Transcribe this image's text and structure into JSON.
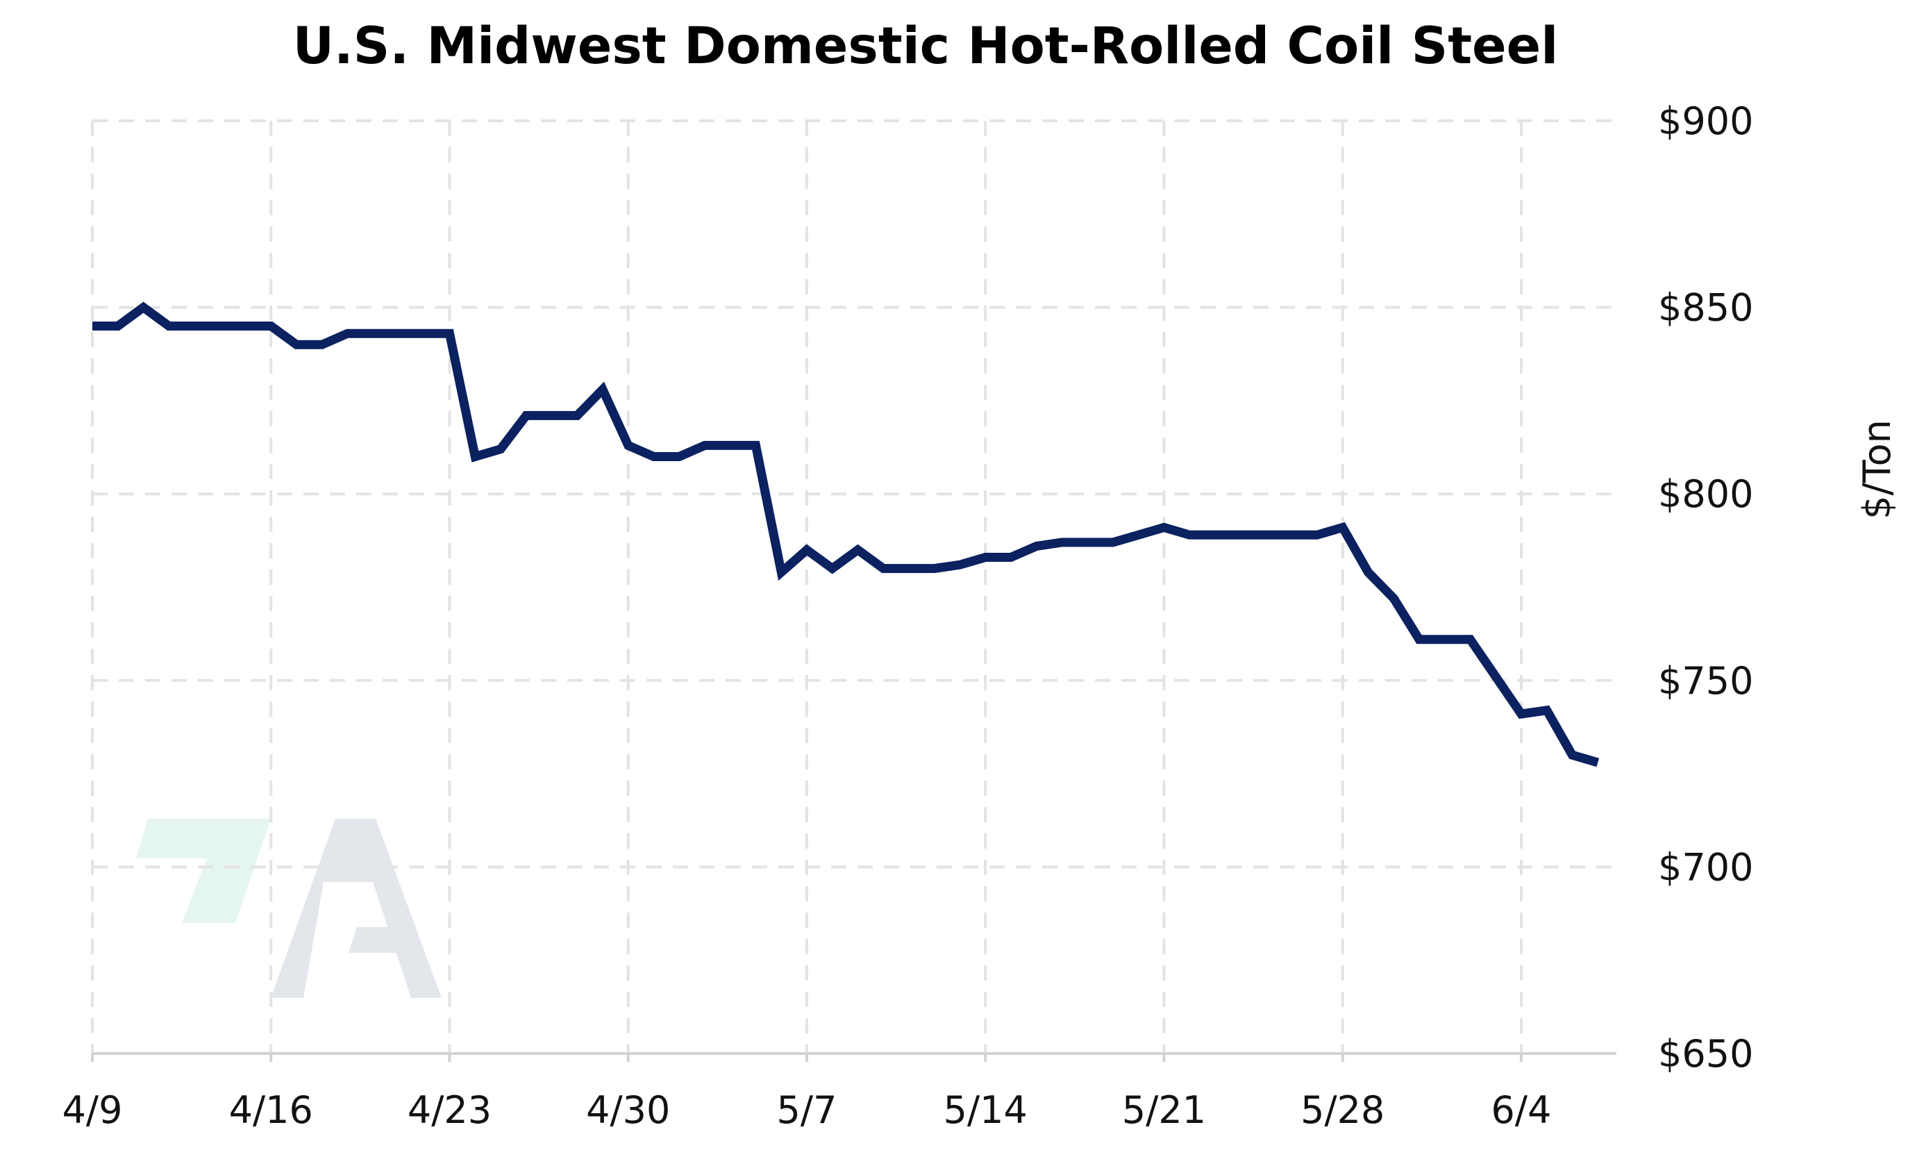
{
  "chart_data": {
    "type": "line",
    "title": "U.S. Midwest Domestic Hot-Rolled Coil Steel",
    "xlabel": "",
    "ylabel": "$/Ton",
    "x_tick_labels": [
      "4/9",
      "4/16",
      "4/23",
      "4/30",
      "5/7",
      "5/14",
      "5/21",
      "5/28",
      "6/4"
    ],
    "y_tick_labels": [
      "$650",
      "$700",
      "$750",
      "$800",
      "$850",
      "$900"
    ],
    "y_ticks": [
      650,
      700,
      750,
      800,
      850,
      900
    ],
    "ylim": [
      650,
      900
    ],
    "xlim": [
      "4/9",
      "6/8"
    ],
    "grid": true,
    "y_axis_position": "right",
    "series": [
      {
        "color": "#0b2160",
        "x": [
          "4/9",
          "4/10",
          "4/11",
          "4/12",
          "4/13",
          "4/14",
          "4/15",
          "4/16",
          "4/17",
          "4/18",
          "4/19",
          "4/20",
          "4/21",
          "4/22",
          "4/23",
          "4/24",
          "4/25",
          "4/26",
          "4/27",
          "4/28",
          "4/29",
          "4/30",
          "5/1",
          "5/2",
          "5/3",
          "5/4",
          "5/5",
          "5/6",
          "5/7",
          "5/8",
          "5/9",
          "5/10",
          "5/11",
          "5/12",
          "5/13",
          "5/14",
          "5/15",
          "5/16",
          "5/17",
          "5/18",
          "5/19",
          "5/20",
          "5/21",
          "5/22",
          "5/23",
          "5/24",
          "5/25",
          "5/26",
          "5/27",
          "5/28",
          "5/29",
          "5/30",
          "5/31",
          "6/1",
          "6/2",
          "6/3",
          "6/4",
          "6/5",
          "6/6",
          "6/7"
        ],
        "values": [
          845,
          845,
          850,
          845,
          845,
          845,
          845,
          845,
          840,
          840,
          843,
          843,
          843,
          843,
          843,
          810,
          812,
          821,
          821,
          821,
          828,
          813,
          810,
          810,
          813,
          813,
          813,
          779,
          785,
          780,
          785,
          780,
          780,
          780,
          781,
          783,
          783,
          786,
          787,
          787,
          787,
          789,
          791,
          789,
          789,
          789,
          789,
          789,
          789,
          791,
          779,
          772,
          761,
          761,
          761,
          751,
          741,
          742,
          730,
          728
        ]
      }
    ]
  },
  "watermark": {
    "name": "A-logo",
    "accent_color": "#e4f6ee",
    "letter_color": "#e3e6eb"
  }
}
